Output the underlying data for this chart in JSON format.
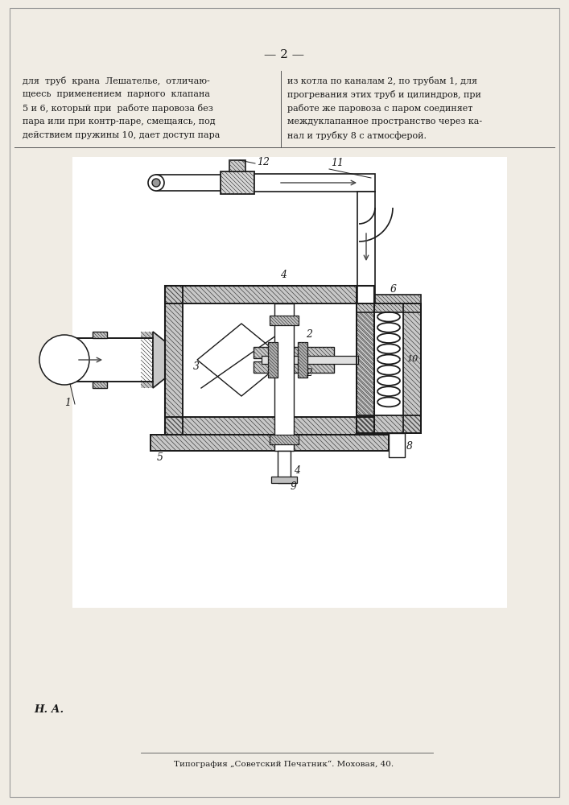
{
  "page_number": "— 2 —",
  "text_left_lines": [
    "для  труб  крана  Лешателье,  отличаю-",
    "щеесь  применением  парного  клапана",
    "5 и 6, который при  работе паровоза без",
    "пара или при контр-паре, смещаясь, под",
    "действием пружины 10, дает доступ пара"
  ],
  "text_right_lines": [
    "из котла по каналам 2, по трубам 1, для",
    "прогревания этих труб и цилиндров, при",
    "работе же паровоза с паром соединяет",
    "междуклапанное пространство через ка-",
    "нал и трубку 8 с атмосферой."
  ],
  "footer_left": "Н. А.",
  "footer_center": "Типография „Советский Печатник“. Моховая, 40.",
  "bg_color": "#f0ece4",
  "text_color": "#1a1a1a",
  "line_color": "#1a1a1a",
  "hatch_color": "#444444"
}
